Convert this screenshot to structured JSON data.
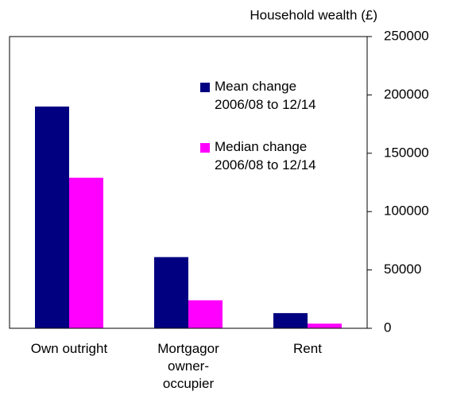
{
  "chart_data": {
    "type": "bar",
    "title": "Household wealth (£)",
    "categories": [
      "Own outright",
      "Mortgagor owner-occupier",
      "Rent"
    ],
    "series": [
      {
        "name": "Mean change 2006/08 to 12/14",
        "color": "#000080",
        "values": [
          190000,
          61000,
          13000
        ]
      },
      {
        "name": "Median change 2006/08 to 12/14",
        "color": "#ff00ff",
        "values": [
          129000,
          24000,
          4000
        ]
      }
    ],
    "ylim": [
      0,
      250000
    ],
    "yticks": [
      0,
      50000,
      100000,
      150000,
      200000,
      250000
    ],
    "grid": false
  }
}
